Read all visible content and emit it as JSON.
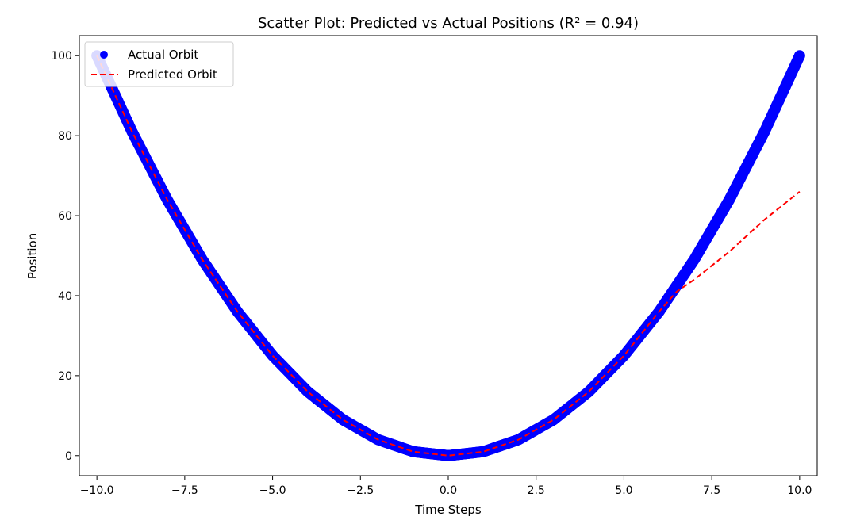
{
  "chart_data": {
    "type": "scatter",
    "title": "Scatter Plot: Predicted vs Actual Positions (R² = 0.94)",
    "xlabel": "Time Steps",
    "ylabel": "Position",
    "xlim": [
      -10.5,
      10.5
    ],
    "ylim": [
      -5,
      105
    ],
    "xticks": [
      -10.0,
      -7.5,
      -5.0,
      -2.5,
      0.0,
      2.5,
      5.0,
      7.5,
      10.0
    ],
    "xtick_labels": [
      "−10.0",
      "−7.5",
      "−5.0",
      "−2.5",
      "0.0",
      "2.5",
      "5.0",
      "7.5",
      "10.0"
    ],
    "yticks": [
      0,
      20,
      40,
      60,
      80,
      100
    ],
    "ytick_labels": [
      "0",
      "20",
      "40",
      "60",
      "80",
      "100"
    ],
    "grid": false,
    "legend_position": "top-left",
    "series": [
      {
        "name": "Actual Orbit",
        "kind": "scatter",
        "color": "#0000ff",
        "x": [
          -10.0,
          -9.0,
          -8.0,
          -7.0,
          -6.0,
          -5.0,
          -4.0,
          -3.0,
          -2.0,
          -1.0,
          0.0,
          1.0,
          2.0,
          3.0,
          4.0,
          5.0,
          6.0,
          7.0,
          8.0,
          9.0,
          10.0
        ],
        "y": [
          100,
          81,
          64,
          49,
          36,
          25,
          16,
          9,
          4,
          1,
          0,
          1,
          4,
          9,
          16,
          25,
          36,
          49,
          64,
          81,
          100
        ]
      },
      {
        "name": "Predicted Orbit",
        "kind": "line",
        "style": "dashed",
        "color": "#ff0000",
        "x": [
          -10.0,
          -9.0,
          -8.0,
          -7.0,
          -6.0,
          -5.0,
          -4.0,
          -3.0,
          -2.0,
          -1.0,
          0.0,
          1.0,
          2.0,
          3.0,
          4.0,
          5.0,
          6.0,
          6.5,
          7.0,
          8.0,
          9.0,
          10.0
        ],
        "y": [
          100,
          81,
          64,
          49,
          36,
          25,
          16,
          9,
          4,
          1,
          0,
          1,
          4,
          9,
          16,
          25,
          36,
          41,
          44,
          51,
          59,
          66
        ]
      }
    ]
  }
}
